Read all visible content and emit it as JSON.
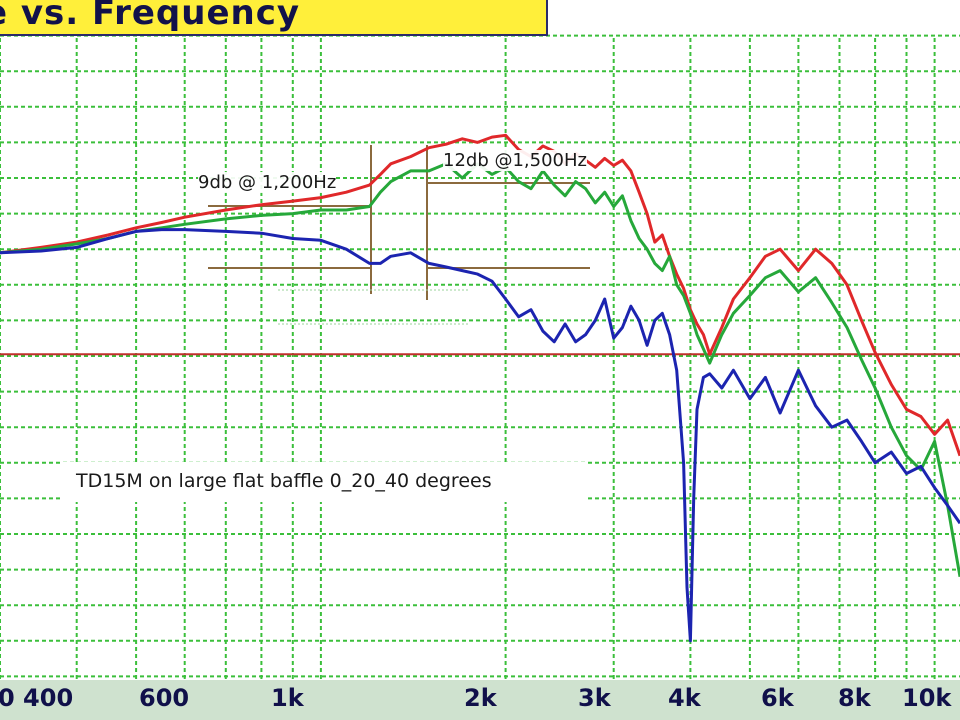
{
  "title": "e vs. Frequency",
  "caption": "TD15M on large flat baffle  0_20_40  degrees",
  "annotations": {
    "a1200": "9db @ 1,200Hz",
    "a1500": "12db @1,500Hz"
  },
  "colors": {
    "grid": "#3bbf3b",
    "reference": "#c0302c",
    "series_0": "#e0282a",
    "series_20": "#26a83a",
    "series_40": "#1c24b0",
    "marker": "#8b6a3e",
    "banner": "#ffef3a"
  },
  "chart_data": {
    "type": "line",
    "xscale": "log",
    "xlim": [
      300,
      11000
    ],
    "ylim": [
      0,
      20
    ],
    "x_tick_labels": [
      "0 400",
      "600",
      "1k",
      "2k",
      "3k",
      "4k",
      "6k",
      "8k",
      "10k"
    ],
    "reference_y": 10.05,
    "series": [
      {
        "color_key": "series_0",
        "x": [
          300,
          350,
          400,
          450,
          500,
          550,
          600,
          700,
          800,
          900,
          1000,
          1100,
          1200,
          1250,
          1300,
          1400,
          1500,
          1600,
          1700,
          1800,
          1900,
          2000,
          2100,
          2200,
          2300,
          2400,
          2500,
          2600,
          2700,
          2800,
          2900,
          3000,
          3100,
          3200,
          3300,
          3400,
          3500,
          3600,
          3700,
          3800,
          3900,
          4000,
          4100,
          4200,
          4300,
          4500,
          4700,
          5000,
          5300,
          5600,
          6000,
          6400,
          6800,
          7200,
          7600,
          8000,
          8500,
          9000,
          9500,
          10000,
          10500,
          11000
        ],
        "y": [
          12.9,
          13.05,
          13.2,
          13.4,
          13.6,
          13.75,
          13.9,
          14.1,
          14.25,
          14.35,
          14.45,
          14.6,
          14.8,
          15.1,
          15.4,
          15.6,
          15.85,
          15.95,
          16.1,
          16.0,
          16.15,
          16.2,
          15.8,
          15.6,
          15.9,
          15.75,
          15.4,
          15.7,
          15.5,
          15.3,
          15.55,
          15.35,
          15.5,
          15.2,
          14.6,
          14.0,
          13.2,
          13.4,
          12.8,
          12.3,
          11.9,
          11.3,
          10.9,
          10.6,
          10.05,
          10.8,
          11.6,
          12.2,
          12.8,
          13.0,
          12.4,
          13.0,
          12.6,
          12.0,
          11.0,
          10.1,
          9.2,
          8.5,
          8.3,
          7.8,
          8.2,
          7.2
        ]
      },
      {
        "color_key": "series_20",
        "x": [
          300,
          350,
          400,
          450,
          500,
          550,
          600,
          700,
          800,
          900,
          1000,
          1100,
          1200,
          1250,
          1300,
          1400,
          1500,
          1600,
          1700,
          1800,
          1900,
          2000,
          2100,
          2200,
          2300,
          2400,
          2500,
          2600,
          2700,
          2800,
          2900,
          3000,
          3100,
          3200,
          3300,
          3400,
          3500,
          3600,
          3700,
          3800,
          3900,
          4000,
          4100,
          4200,
          4300,
          4500,
          4700,
          5000,
          5300,
          5600,
          6000,
          6400,
          6800,
          7200,
          7600,
          8000,
          8500,
          9000,
          9500,
          10000,
          10500,
          11000
        ],
        "y": [
          12.9,
          13.0,
          13.15,
          13.3,
          13.5,
          13.6,
          13.7,
          13.85,
          13.95,
          14.0,
          14.1,
          14.1,
          14.2,
          14.6,
          14.9,
          15.2,
          15.2,
          15.4,
          15.0,
          15.4,
          15.1,
          15.3,
          14.9,
          14.7,
          15.2,
          14.8,
          14.5,
          14.9,
          14.7,
          14.3,
          14.6,
          14.2,
          14.5,
          13.8,
          13.3,
          13.0,
          12.6,
          12.4,
          12.8,
          12.0,
          11.7,
          11.2,
          10.6,
          10.2,
          9.8,
          10.6,
          11.2,
          11.7,
          12.2,
          12.4,
          11.8,
          12.2,
          11.5,
          10.8,
          9.9,
          9.1,
          8.0,
          7.2,
          6.8,
          7.6,
          5.8,
          3.8
        ]
      },
      {
        "color_key": "series_40",
        "x": [
          300,
          350,
          400,
          450,
          500,
          550,
          600,
          700,
          800,
          900,
          1000,
          1100,
          1200,
          1250,
          1300,
          1400,
          1500,
          1600,
          1700,
          1800,
          1900,
          2000,
          2100,
          2200,
          2300,
          2400,
          2500,
          2600,
          2700,
          2800,
          2900,
          3000,
          3100,
          3200,
          3300,
          3400,
          3500,
          3600,
          3700,
          3800,
          3900,
          3950,
          4000,
          4050,
          4100,
          4200,
          4300,
          4500,
          4700,
          5000,
          5300,
          5600,
          6000,
          6400,
          6800,
          7200,
          7600,
          8000,
          8500,
          9000,
          9500,
          10000,
          10500,
          11000
        ],
        "y": [
          12.9,
          12.95,
          13.05,
          13.3,
          13.5,
          13.55,
          13.55,
          13.5,
          13.45,
          13.3,
          13.25,
          13.0,
          12.6,
          12.6,
          12.8,
          12.9,
          12.6,
          12.5,
          12.4,
          12.3,
          12.1,
          11.6,
          11.1,
          11.3,
          10.7,
          10.4,
          10.9,
          10.4,
          10.6,
          11.0,
          11.6,
          10.5,
          10.8,
          11.4,
          11.0,
          10.3,
          11.0,
          11.2,
          10.6,
          9.6,
          7.0,
          3.5,
          2.0,
          6.0,
          8.5,
          9.4,
          9.5,
          9.1,
          9.6,
          8.8,
          9.4,
          8.4,
          9.6,
          8.6,
          8.0,
          8.2,
          7.6,
          7.0,
          7.3,
          6.7,
          6.9,
          6.3,
          5.8,
          5.3
        ]
      }
    ]
  }
}
